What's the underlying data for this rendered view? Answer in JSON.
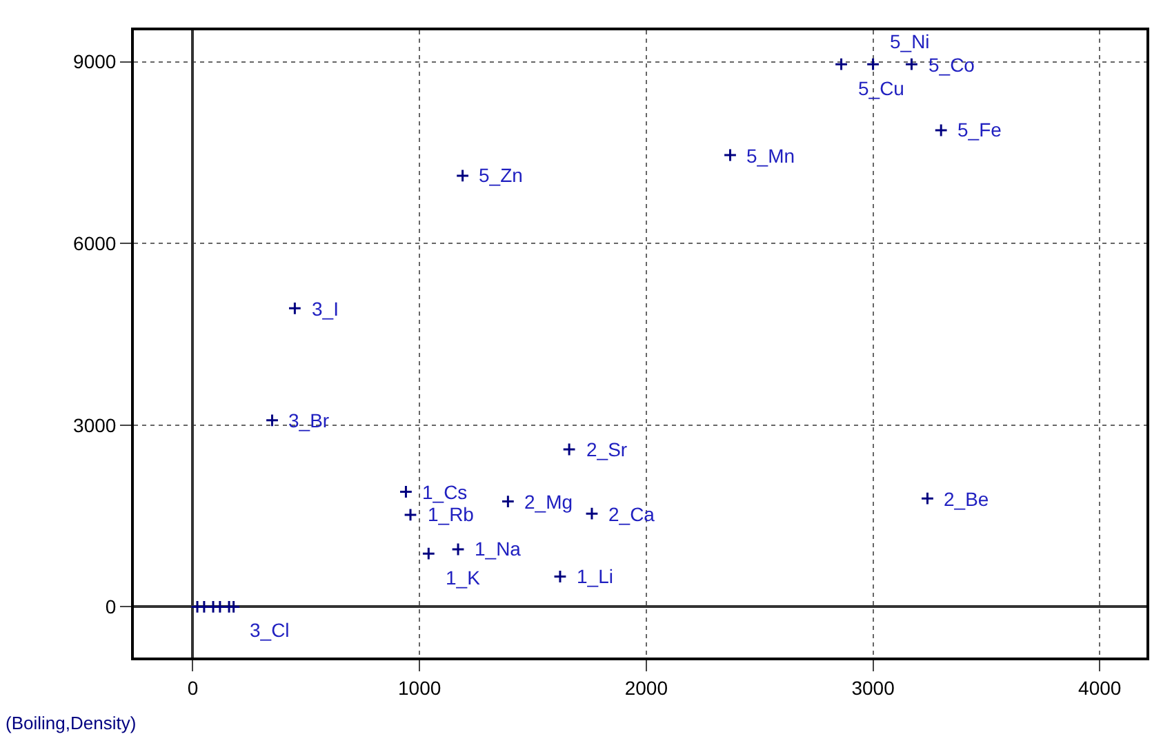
{
  "chart_data": {
    "type": "scatter",
    "x": [
      1190,
      450,
      2370,
      3300,
      2860,
      3000,
      3170,
      350,
      1660,
      940,
      960,
      1390,
      1760,
      1040,
      1170,
      1620,
      3240,
      20,
      50,
      90,
      120,
      160,
      180
    ],
    "series": [
      {
        "color": "#000080",
        "values": [
          7120,
          4930,
          7460,
          7870,
          8960,
          8960,
          8960,
          3080,
          2600,
          1900,
          1520,
          1740,
          1540,
          880,
          950,
          500,
          1790,
          0,
          0,
          0,
          0,
          0,
          0
        ]
      }
    ],
    "xlim": [
      -260,
      4206
    ],
    "ylim": [
      -837,
      9520
    ],
    "xticks": [
      0,
      1000,
      2000,
      3000,
      4000
    ],
    "yticks": [
      0,
      3000,
      6000,
      9000
    ],
    "grid": true,
    "marker": "cross",
    "annotations": [
      {
        "text": "5_Zn",
        "x": 1190,
        "y": 7120
      },
      {
        "text": "3_I",
        "x": 450,
        "y": 4930
      },
      {
        "text": "5_Mn",
        "x": 2370,
        "y": 7460
      },
      {
        "text": "5_Fe",
        "x": 3300,
        "y": 7870
      },
      {
        "text": "5_Cu",
        "x": 2860,
        "y": 8960
      },
      {
        "text": "5_Ni",
        "x": 3000,
        "y": 8960
      },
      {
        "text": "5_Co",
        "x": 3170,
        "y": 8960
      },
      {
        "text": "3_Br",
        "x": 350,
        "y": 3080
      },
      {
        "text": "2_Sr",
        "x": 1660,
        "y": 2600
      },
      {
        "text": "1_Cs",
        "x": 940,
        "y": 1900
      },
      {
        "text": "1_Rb",
        "x": 960,
        "y": 1520
      },
      {
        "text": "2_Mg",
        "x": 1390,
        "y": 1740
      },
      {
        "text": "2_Ca",
        "x": 1760,
        "y": 1540
      },
      {
        "text": "1_K",
        "x": 1040,
        "y": 880
      },
      {
        "text": "1_Na",
        "x": 1170,
        "y": 950
      },
      {
        "text": "1_Li",
        "x": 1620,
        "y": 500
      },
      {
        "text": "2_Be",
        "x": 3240,
        "y": 1790
      },
      {
        "text": "3_Cl",
        "x": 180,
        "y": 0
      },
      "(Boiling,Density)"
    ]
  }
}
